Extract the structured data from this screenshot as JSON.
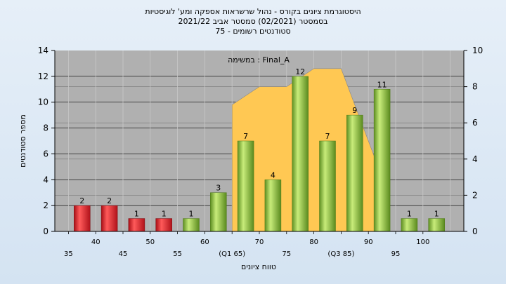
{
  "chart_data": {
    "type": "bar",
    "title_lines": [
      "היסטוגרמת ציונים בקורס - נהול שרשראות אספקה ומע' לוגיסטיות",
      "בסמסטר  (02/2021)  סמסטר אביב 2021/22",
      "סטודנטים רשומים - 75"
    ],
    "annotation": "במשימה : Final_A",
    "xlabel": "טווח ציונים",
    "ylabel": "מספר סטודנטים",
    "ylim": [
      0,
      14
    ],
    "y_ticks": [
      "0",
      "2",
      "4",
      "6",
      "8",
      "10",
      "12",
      "14"
    ],
    "y2lim": [
      0,
      10
    ],
    "y2_ticks": [
      "0",
      "2",
      "4",
      "6",
      "8",
      "10"
    ],
    "categories": [
      "35",
      "40",
      "45",
      "50",
      "55",
      "60",
      "(Q1 65)",
      "70",
      "75",
      "80",
      "(Q3 85)",
      "90",
      "95",
      "100"
    ],
    "values": [
      2,
      2,
      1,
      1,
      1,
      3,
      7,
      4,
      12,
      7,
      9,
      11,
      1,
      1
    ],
    "value_labels": [
      "2",
      "2",
      "1",
      "1",
      "1",
      "3",
      "7",
      "4",
      "12",
      "7",
      "9",
      "11",
      "1",
      "1"
    ],
    "bar_colors": [
      "red",
      "red",
      "red",
      "red",
      "green",
      "green",
      "green",
      "green",
      "green",
      "green",
      "green",
      "green",
      "green",
      "green"
    ],
    "overlay_area": {
      "x_index": [
        6,
        7,
        8,
        9,
        10,
        11
      ],
      "y2": [
        7,
        8,
        8,
        9,
        9,
        3
      ]
    },
    "grid": true,
    "colors": {
      "red": "#e0202a",
      "green": "#8cc63f",
      "area": "#ffc853",
      "plot_bg": "#b0b0b0"
    }
  }
}
